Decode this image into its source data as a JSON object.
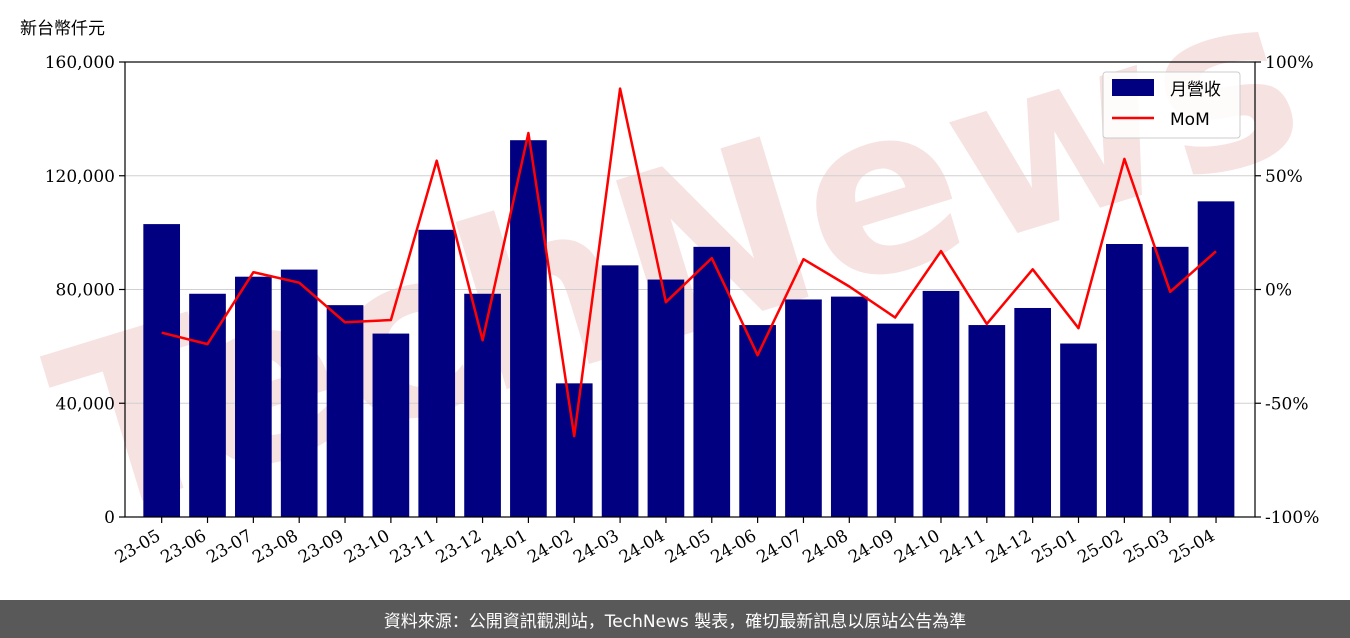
{
  "unit_label": "新台幣仟元",
  "footer_text": "資料來源：公開資訊觀測站，TechNews 製表，確切最新訊息以原站公告為準",
  "watermark_text": "TechNews",
  "colors": {
    "bar": "#000080",
    "line": "#ff0000",
    "grid": "#d0d0d0",
    "footer_bg": "#595959",
    "watermark": "#f5d9d9"
  },
  "chart_data": {
    "type": "bar",
    "categories": [
      "23-05",
      "23-06",
      "23-07",
      "23-08",
      "23-09",
      "23-10",
      "23-11",
      "23-12",
      "24-01",
      "24-02",
      "24-03",
      "24-04",
      "24-05",
      "24-06",
      "24-07",
      "24-08",
      "24-09",
      "24-10",
      "24-11",
      "24-12",
      "25-01",
      "25-02",
      "25-03",
      "25-04"
    ],
    "series": [
      {
        "name": "月營收",
        "type": "bar",
        "axis": "left",
        "values": [
          103000,
          78500,
          84500,
          87000,
          74500,
          64500,
          101000,
          78500,
          132500,
          47000,
          88500,
          83500,
          95000,
          67500,
          76500,
          77500,
          68000,
          79500,
          67500,
          73500,
          61000,
          96000,
          95000,
          111000
        ]
      },
      {
        "name": "MoM",
        "type": "line",
        "axis": "right",
        "values": [
          -19,
          -24,
          7.6,
          3,
          -14.4,
          -13.4,
          56.6,
          -22.3,
          68.8,
          -64.5,
          88.3,
          -5.6,
          13.8,
          -28.9,
          13.3,
          1.3,
          -12.3,
          16.9,
          -15.1,
          8.9,
          -17,
          57.4,
          -1,
          16.8
        ]
      }
    ],
    "ylim_left": [
      0,
      160000
    ],
    "yticks_left": [
      "0",
      "40,000",
      "80,000",
      "120,000",
      "160,000"
    ],
    "ylim_right": [
      -100,
      100
    ],
    "yticks_right": [
      "-100%",
      "-50%",
      "0%",
      "50%",
      "100%"
    ],
    "grid": true,
    "legend_placement": "top-right"
  }
}
